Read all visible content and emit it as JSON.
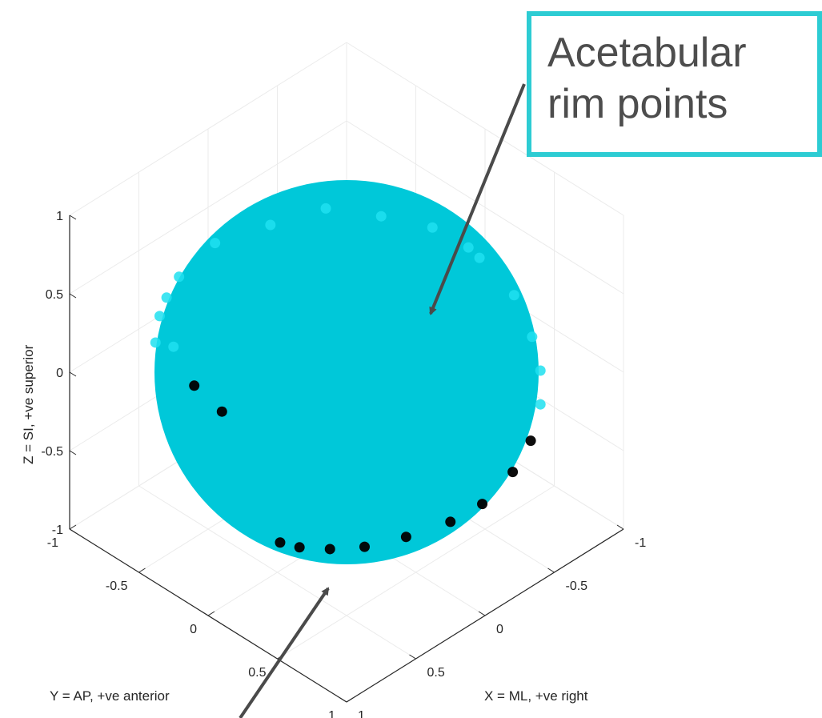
{
  "chart_data": {
    "type": "scatter",
    "view": "3d",
    "annotation": "Acetabular\nrim points",
    "xlabel": "X = ML, +ve right",
    "ylabel": "Y = AP, +ve anterior",
    "zlabel": "Z = SI, +ve superior",
    "xlim": [
      -1,
      1
    ],
    "ylim": [
      -1,
      1
    ],
    "zlim": [
      -1,
      1
    ],
    "x_ticks": [
      "-1",
      "-0.5",
      "0",
      "0.5",
      "1"
    ],
    "y_ticks": [
      "-1",
      "-0.5",
      "0",
      "0.5",
      "1"
    ],
    "z_ticks": [
      "-1",
      "-0.5",
      "0",
      "0.5",
      "1"
    ],
    "grid": true,
    "surface": {
      "shape": "sphere",
      "center": [
        0,
        0,
        0
      ],
      "radius": 1,
      "color": "#00c8d9"
    },
    "point_color_front": "#000000",
    "point_color_back": "#1fe0f0",
    "series": [
      {
        "values": [
          {
            "x": -0.96,
            "y": 0.0,
            "z": 0.2
          },
          {
            "x": -0.96,
            "y": 0.25,
            "z": 0.1
          },
          {
            "x": -0.92,
            "y": 0.42,
            "z": -0.05
          },
          {
            "x": -0.8,
            "y": 0.6,
            "z": -0.1
          },
          {
            "x": -0.65,
            "y": 0.75,
            "z": -0.15
          },
          {
            "x": -0.45,
            "y": 0.88,
            "z": -0.2
          },
          {
            "x": -0.25,
            "y": 0.95,
            "z": -0.25
          },
          {
            "x": 0.0,
            "y": 0.98,
            "z": -0.3
          },
          {
            "x": 0.2,
            "y": 0.95,
            "z": -0.32
          },
          {
            "x": 0.42,
            "y": 0.85,
            "z": -0.35
          },
          {
            "x": 0.6,
            "y": 0.73,
            "z": -0.38
          },
          {
            "x": 0.72,
            "y": 0.6,
            "z": -0.4
          },
          {
            "x": 0.82,
            "y": 0.48,
            "z": -0.4
          },
          {
            "x": 0.88,
            "y": 0.4,
            "z": -0.38
          },
          {
            "x": 0.0,
            "y": -0.95,
            "z": 0.3
          },
          {
            "x": -0.35,
            "y": -0.9,
            "z": 0.25
          },
          {
            "x": -0.6,
            "y": -0.75,
            "z": 0.3
          },
          {
            "x": -0.8,
            "y": -0.55,
            "z": 0.25
          },
          {
            "x": -0.92,
            "y": -0.3,
            "z": 0.25
          },
          {
            "x": -0.98,
            "y": -0.1,
            "z": 0.2
          },
          {
            "x": 0.4,
            "y": -0.9,
            "z": 0.2
          },
          {
            "x": 0.7,
            "y": -0.68,
            "z": 0.2
          },
          {
            "x": 0.75,
            "y": -0.5,
            "z": 0.3
          },
          {
            "x": 0.9,
            "y": -0.2,
            "z": 0.3
          },
          {
            "x": 0.95,
            "y": 0.05,
            "z": 0.3
          },
          {
            "x": 0.28,
            "y": -0.93,
            "z": 0.25
          },
          {
            "x": 0.55,
            "y": -0.8,
            "z": 0.22
          }
        ]
      }
    ]
  }
}
